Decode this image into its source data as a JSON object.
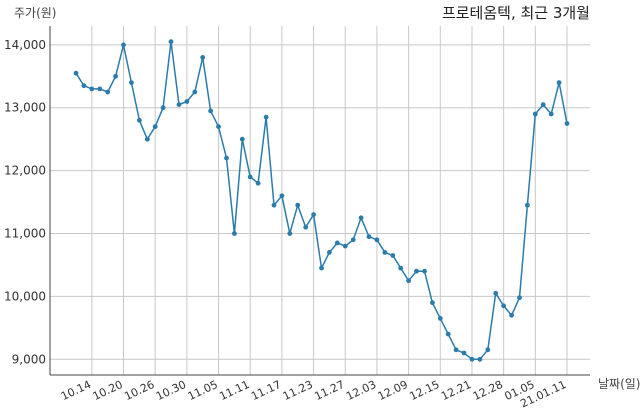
{
  "chart_data": {
    "type": "line",
    "title": "프로테옴텍, 최근 3개월",
    "ylabel": "주가(원)",
    "xlabel": "날짜(일)",
    "ylim": [
      8750,
      14300
    ],
    "yticks": [
      9000,
      10000,
      11000,
      12000,
      13000,
      14000
    ],
    "ytick_labels": [
      "9,000",
      "10,000",
      "11,000",
      "12,000",
      "13,000",
      "14,000"
    ],
    "xtick_labels": [
      "10.14",
      "10.20",
      "10.26",
      "10.30",
      "11.05",
      "11.11",
      "11.17",
      "11.23",
      "11.27",
      "12.03",
      "12.09",
      "12.15",
      "12.21",
      "12.28",
      "01.05",
      "21.01.11"
    ],
    "xtick_index": [
      2,
      6,
      10,
      14,
      18,
      22,
      26,
      30,
      34,
      38,
      42,
      46,
      50,
      54,
      58,
      62
    ],
    "grid": true,
    "color": "#2b7bab",
    "series": [
      {
        "values": [
          13550,
          13350,
          13300,
          13300,
          13250,
          13500,
          14000,
          13400,
          12800,
          12500,
          12700,
          13000,
          14050,
          13050,
          13100,
          13250,
          13800,
          12950,
          12700,
          12200,
          11000,
          12500,
          11900,
          11800,
          12850,
          11450,
          11600,
          11000,
          11450,
          11100,
          11300,
          10450,
          10700,
          10850,
          10800,
          10900,
          11250,
          10950,
          10900,
          10700,
          10650,
          10450,
          10250,
          10400,
          10400,
          9900,
          9650,
          9400,
          9150,
          9100,
          9000,
          9000,
          9150,
          10050,
          9850,
          9700,
          9980,
          11450,
          12900,
          13050,
          12900,
          13400,
          12750
        ]
      }
    ]
  }
}
